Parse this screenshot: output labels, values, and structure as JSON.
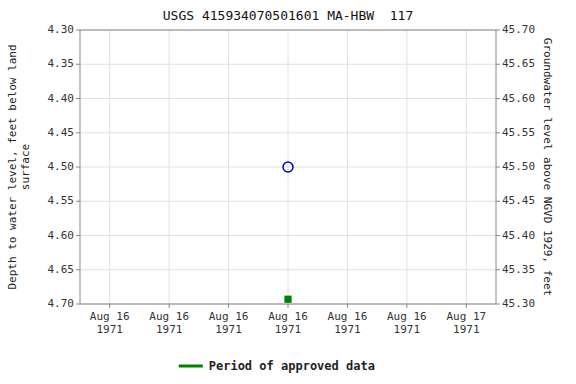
{
  "chart_data": {
    "type": "scatter",
    "title": "USGS 415934070501601 MA-HBW  117",
    "categories": [
      "Aug 16\n1971",
      "Aug 16\n1971",
      "Aug 16\n1971",
      "Aug 16\n1971",
      "Aug 16\n1971",
      "Aug 16\n1971",
      "Aug 17\n1971"
    ],
    "ylabel": "Depth to water level, feet below land\nsurface",
    "y2label": "Groundwater level above NGVD 1929, feet",
    "ylim": [
      4.7,
      4.3
    ],
    "yticks": [
      {
        "value": 4.3,
        "label": "4.30"
      },
      4.35,
      {
        "value": 4.4,
        "label": "4.40"
      },
      4.45,
      {
        "value": 4.5,
        "label": "4.50"
      },
      4.55,
      {
        "value": 4.6,
        "label": "4.60"
      },
      4.65,
      {
        "value": 4.7,
        "label": "4.70"
      }
    ],
    "y2lim": [
      45.3,
      45.7
    ],
    "y2ticks": [
      {
        "value": 45.7,
        "label": "45.70"
      },
      45.65,
      {
        "value": 45.6,
        "label": "45.60"
      },
      45.55,
      {
        "value": 45.5,
        "label": "45.50"
      },
      45.45,
      {
        "value": 45.4,
        "label": "45.40"
      },
      45.35,
      {
        "value": 45.3,
        "label": "45.30"
      }
    ],
    "series": [
      {
        "color": "#0000cc",
        "marker": "circle-open",
        "values": [
          null,
          null,
          null,
          4.5,
          null,
          null,
          null
        ]
      },
      {
        "name": "Period of approved data",
        "color": "#008000",
        "marker": "square",
        "values": [
          null,
          null,
          null,
          4.693,
          null,
          null,
          null
        ]
      }
    ],
    "grid": true,
    "legend": "bottom"
  }
}
